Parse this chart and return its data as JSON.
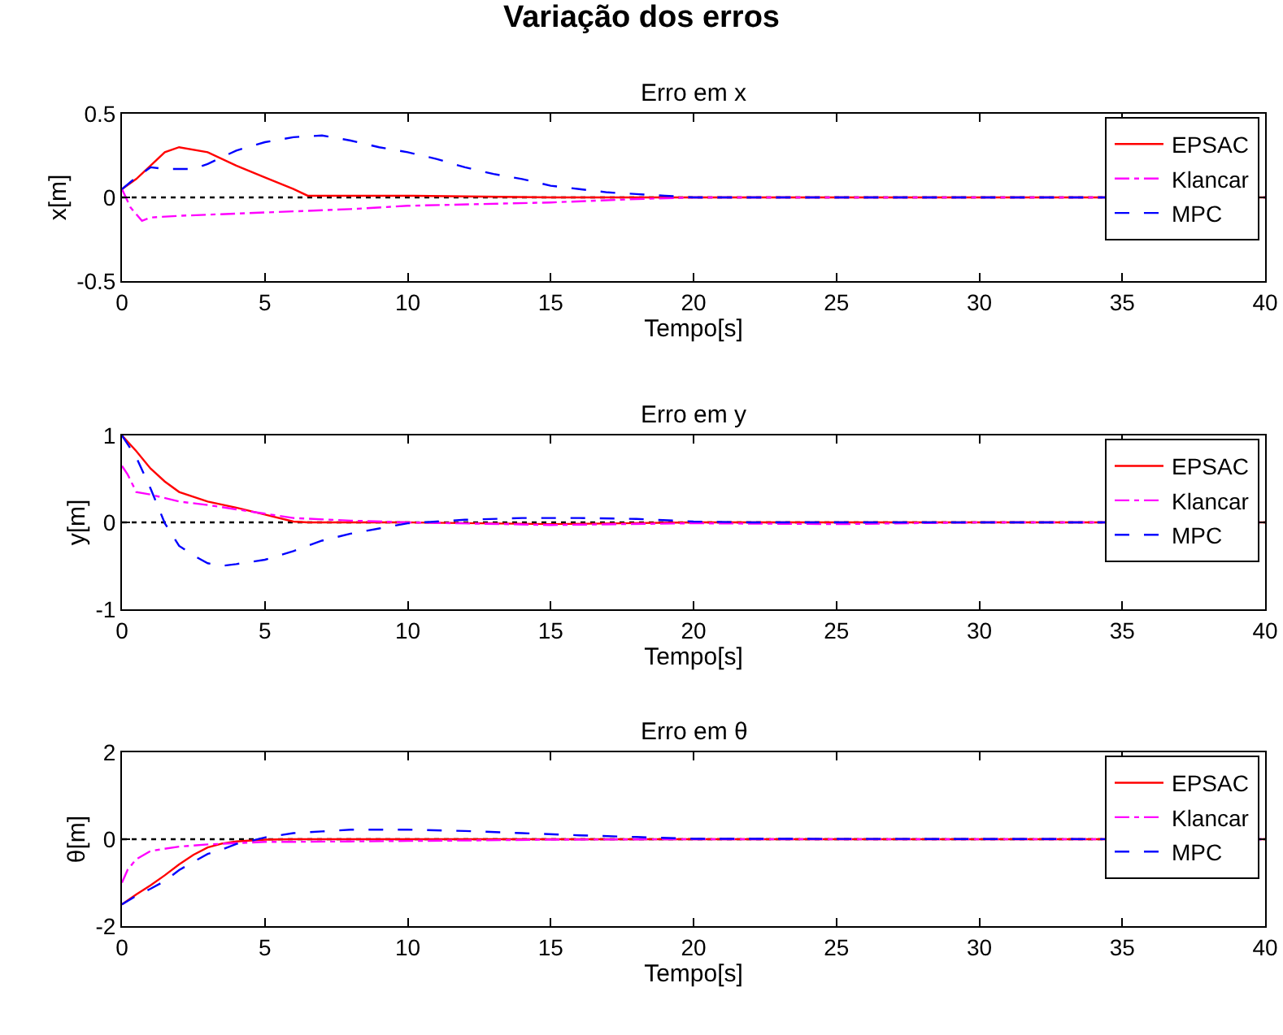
{
  "chart_data": [
    {
      "type": "line",
      "title": "Variação dos erros",
      "subtitle": "Erro em x",
      "xlabel": "Tempo[s]",
      "ylabel": "x[m]",
      "xlim": [
        0,
        40
      ],
      "xticks": [
        0,
        5,
        10,
        15,
        20,
        25,
        30,
        35,
        40
      ],
      "ylim": [
        -0.5,
        0.5
      ],
      "yticks": [
        -0.5,
        0,
        0.5
      ],
      "grid": false,
      "legend": "top right",
      "marker": "none",
      "ref_lines": [
        {
          "axis": "y",
          "value": 0,
          "color": "#000000",
          "line_style": "dotted"
        }
      ],
      "series": [
        {
          "name": "EPSAC",
          "color": "#ff0000",
          "line_style": "solid",
          "x": [
            0,
            0.5,
            1,
            1.5,
            2,
            3,
            4,
            5,
            6,
            6.5,
            10,
            15,
            18,
            20,
            40
          ],
          "values": [
            0.05,
            0.11,
            0.19,
            0.27,
            0.3,
            0.27,
            0.19,
            0.12,
            0.05,
            0.01,
            0.01,
            0,
            0,
            0,
            0
          ]
        },
        {
          "name": "Klancar",
          "color": "#ff00ff",
          "line_style": "dashdot",
          "x": [
            0,
            0.3,
            0.7,
            1,
            2,
            5,
            8,
            10,
            15,
            18,
            20,
            40
          ],
          "values": [
            0.05,
            -0.06,
            -0.14,
            -0.12,
            -0.11,
            -0.09,
            -0.07,
            -0.05,
            -0.03,
            -0.01,
            0,
            0
          ]
        },
        {
          "name": "MPC",
          "color": "#0000ff",
          "line_style": "dashed",
          "x": [
            0,
            0.5,
            1,
            1.5,
            2,
            2.5,
            3,
            4,
            5,
            6,
            7,
            8,
            9,
            10,
            11,
            12,
            13,
            14,
            15,
            16,
            17,
            18,
            19,
            20,
            40
          ],
          "values": [
            0.05,
            0.12,
            0.18,
            0.17,
            0.17,
            0.17,
            0.2,
            0.28,
            0.33,
            0.36,
            0.37,
            0.34,
            0.3,
            0.27,
            0.23,
            0.18,
            0.14,
            0.11,
            0.07,
            0.05,
            0.03,
            0.02,
            0.01,
            0,
            0
          ]
        }
      ]
    },
    {
      "type": "line",
      "title": "Erro em y",
      "xlabel": "Tempo[s]",
      "ylabel": "y[m]",
      "xlim": [
        0,
        40
      ],
      "xticks": [
        0,
        5,
        10,
        15,
        20,
        25,
        30,
        35,
        40
      ],
      "ylim": [
        -1,
        1
      ],
      "yticks": [
        -1,
        0,
        1
      ],
      "grid": false,
      "legend": "top right",
      "marker": "none",
      "ref_lines": [
        {
          "axis": "y",
          "value": 0,
          "color": "#000000",
          "line_style": "dotted"
        }
      ],
      "series": [
        {
          "name": "EPSAC",
          "color": "#ff0000",
          "line_style": "solid",
          "x": [
            0,
            0.5,
            1,
            1.5,
            2,
            3,
            4,
            5,
            6,
            6.5,
            10,
            15,
            20,
            40
          ],
          "values": [
            1,
            0.82,
            0.62,
            0.47,
            0.35,
            0.24,
            0.17,
            0.09,
            0.01,
            0,
            0,
            -0.02,
            0,
            0
          ]
        },
        {
          "name": "Klancar",
          "color": "#ff00ff",
          "line_style": "dashdot",
          "x": [
            0,
            0.2,
            0.5,
            1,
            2,
            3,
            4,
            5,
            6,
            8,
            10,
            15,
            20,
            25,
            30,
            40
          ],
          "values": [
            0.65,
            0.55,
            0.35,
            0.32,
            0.24,
            0.2,
            0.15,
            0.1,
            0.05,
            0.02,
            0,
            -0.03,
            -0.01,
            -0.02,
            0,
            0
          ]
        },
        {
          "name": "MPC",
          "color": "#0000ff",
          "line_style": "dashed",
          "x": [
            0,
            0.5,
            1,
            1.5,
            2,
            2.5,
            3,
            3.5,
            4,
            5,
            6,
            7,
            8,
            9,
            10,
            11,
            12,
            14,
            16,
            18,
            20,
            22,
            40
          ],
          "values": [
            1,
            0.75,
            0.39,
            -0.01,
            -0.27,
            -0.38,
            -0.47,
            -0.5,
            -0.48,
            -0.43,
            -0.33,
            -0.21,
            -0.13,
            -0.07,
            -0.01,
            0.01,
            0.03,
            0.05,
            0.05,
            0.04,
            0.01,
            0,
            0
          ]
        }
      ]
    },
    {
      "type": "line",
      "title": "Erro em θ",
      "xlabel": "Tempo[s]",
      "ylabel": "θ[m]",
      "xlim": [
        0,
        40
      ],
      "xticks": [
        0,
        5,
        10,
        15,
        20,
        25,
        30,
        35,
        40
      ],
      "ylim": [
        -2,
        2
      ],
      "yticks": [
        -2,
        0,
        2
      ],
      "grid": false,
      "legend": "top right",
      "marker": "none",
      "ref_lines": [
        {
          "axis": "y",
          "value": 0,
          "color": "#000000",
          "line_style": "dotted"
        }
      ],
      "series": [
        {
          "name": "EPSAC",
          "color": "#ff0000",
          "line_style": "solid",
          "x": [
            0,
            0.5,
            1,
            1.5,
            2,
            2.5,
            3,
            3.5,
            4,
            5,
            6,
            40
          ],
          "values": [
            -1.5,
            -1.27,
            -1.06,
            -0.83,
            -0.58,
            -0.36,
            -0.19,
            -0.1,
            -0.05,
            -0.01,
            0,
            0
          ]
        },
        {
          "name": "Klancar",
          "color": "#ff00ff",
          "line_style": "dashdot",
          "x": [
            0,
            0.2,
            0.5,
            1,
            2,
            3,
            4,
            5,
            6,
            8,
            10,
            12,
            15,
            20,
            40
          ],
          "values": [
            -1,
            -0.7,
            -0.46,
            -0.27,
            -0.17,
            -0.12,
            -0.09,
            -0.06,
            -0.06,
            -0.05,
            -0.04,
            -0.03,
            -0.01,
            0,
            0
          ]
        },
        {
          "name": "MPC",
          "color": "#0000ff",
          "line_style": "dashed",
          "x": [
            0,
            0.5,
            1,
            1.5,
            2,
            2.5,
            3,
            3.5,
            4,
            4.5,
            5,
            6,
            7,
            8,
            10,
            12,
            14,
            16,
            18,
            20,
            40
          ],
          "values": [
            -1.5,
            -1.3,
            -1.14,
            -0.96,
            -0.71,
            -0.52,
            -0.34,
            -0.24,
            -0.11,
            -0.04,
            0.04,
            0.14,
            0.18,
            0.22,
            0.22,
            0.19,
            0.14,
            0.09,
            0.05,
            0.01,
            0
          ]
        }
      ]
    }
  ]
}
